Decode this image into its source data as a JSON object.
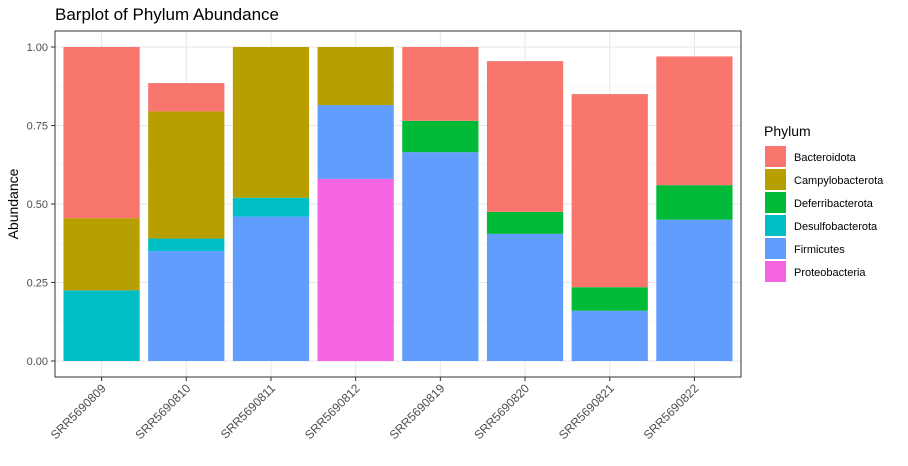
{
  "chart_data": {
    "type": "bar",
    "stacked": true,
    "title": "Barplot of Phylum Abundance",
    "xlabel": "",
    "ylabel": "Abundance",
    "ylim": [
      0,
      1.05
    ],
    "yticks": [
      "0.00",
      "0.25",
      "0.50",
      "0.75",
      "1.00"
    ],
    "grid": true,
    "legend_position": "right",
    "legend_title": "Phylum",
    "categories": [
      "SRR5690809",
      "SRR5690810",
      "SRR5690811",
      "SRR5690812",
      "SRR5690819",
      "SRR5690820",
      "SRR5690821",
      "SRR5690822"
    ],
    "series": [
      {
        "name": "Proteobacteria",
        "color": "#F564E3",
        "values": [
          0,
          0,
          0,
          0.58,
          0,
          0,
          0,
          0
        ]
      },
      {
        "name": "Firmicutes",
        "color": "#619CFF",
        "values": [
          0,
          0.35,
          0.46,
          0.235,
          0.665,
          0.405,
          0.16,
          0.45
        ]
      },
      {
        "name": "Desulfobacterota",
        "color": "#00BFC4",
        "values": [
          0.225,
          0.04,
          0.06,
          0,
          0,
          0,
          0,
          0
        ]
      },
      {
        "name": "Deferribacterota",
        "color": "#00BA38",
        "values": [
          0,
          0,
          0,
          0,
          0.1,
          0.07,
          0.075,
          0.11
        ]
      },
      {
        "name": "Campylobacterota",
        "color": "#B79F00",
        "values": [
          0.23,
          0.405,
          0.48,
          0.185,
          0,
          0,
          0,
          0
        ]
      },
      {
        "name": "Bacteroidota",
        "color": "#F8766D",
        "values": [
          0.545,
          0.09,
          0,
          0,
          0.235,
          0.48,
          0.615,
          0.41
        ]
      }
    ],
    "legend_order": [
      "Bacteroidota",
      "Campylobacterota",
      "Deferribacterota",
      "Desulfobacterota",
      "Firmicutes",
      "Proteobacteria"
    ]
  }
}
